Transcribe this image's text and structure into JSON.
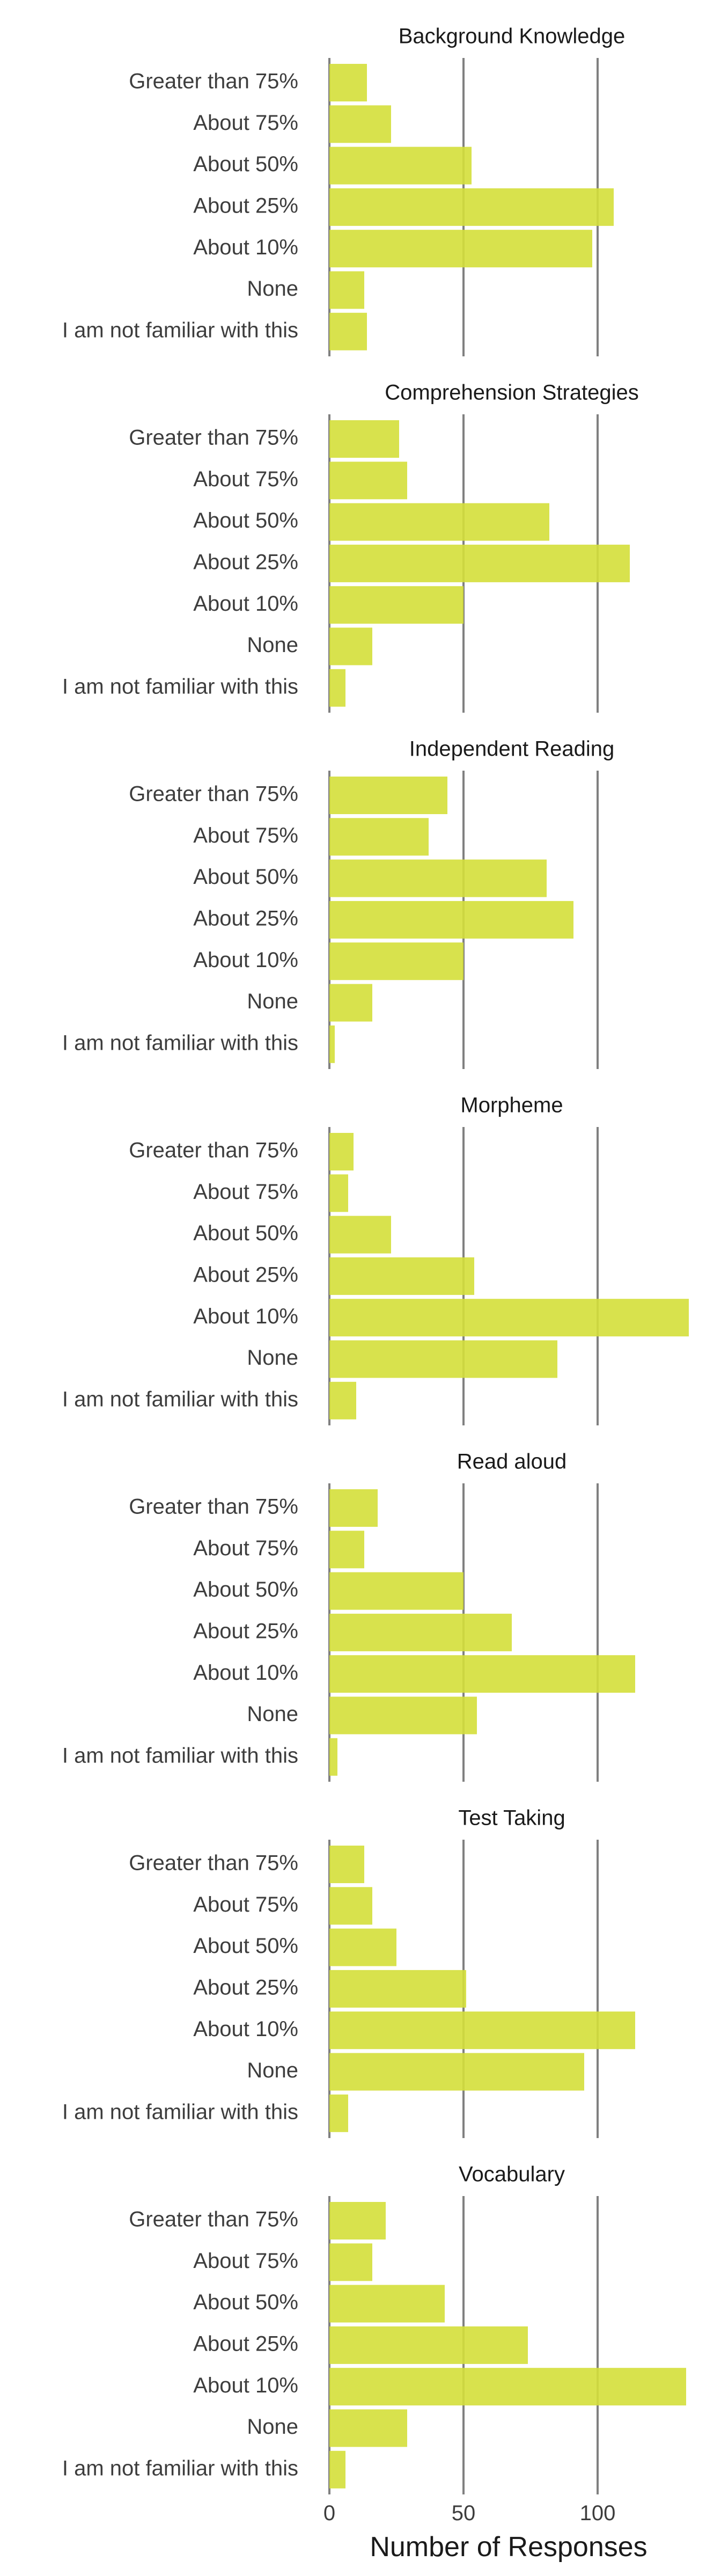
{
  "chart_data": {
    "type": "bar",
    "orientation": "horizontal",
    "facet": "vertical",
    "bar_color": "#d4df3a",
    "gridline_color": "#808080",
    "grid": true,
    "xlim": [
      0,
      134
    ],
    "xticks": [
      0,
      50,
      100
    ],
    "xlabel": "Number of Responses",
    "categories": [
      "Greater than 75%",
      "About 75%",
      "About 50%",
      "About 25%",
      "About 10%",
      "None",
      "I am not familiar with this"
    ],
    "panels": [
      {
        "title": "Background Knowledge",
        "values": [
          14,
          23,
          53,
          106,
          98,
          13,
          14
        ]
      },
      {
        "title": "Comprehension Strategies",
        "values": [
          26,
          29,
          82,
          112,
          50,
          16,
          6
        ]
      },
      {
        "title": "Independent Reading",
        "values": [
          44,
          37,
          81,
          91,
          50,
          16,
          2
        ]
      },
      {
        "title": "Morpheme",
        "values": [
          9,
          7,
          23,
          54,
          134,
          85,
          10
        ]
      },
      {
        "title": "Read aloud",
        "values": [
          18,
          13,
          50,
          68,
          114,
          55,
          3
        ]
      },
      {
        "title": "Test Taking",
        "values": [
          13,
          16,
          25,
          51,
          114,
          95,
          7
        ]
      },
      {
        "title": "Vocabulary",
        "values": [
          21,
          16,
          43,
          74,
          133,
          29,
          6
        ]
      }
    ]
  }
}
